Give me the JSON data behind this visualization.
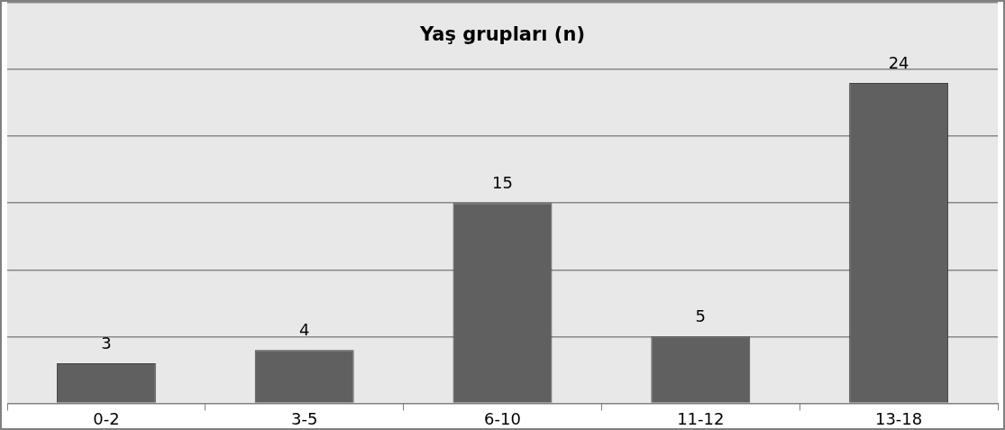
{
  "chart_data": {
    "type": "bar",
    "title": "Yaş grupları (n)",
    "categories": [
      "0-2",
      "3-5",
      "6-10",
      "11-12",
      "13-18"
    ],
    "values": [
      3,
      4,
      15,
      5,
      24
    ],
    "color": "#606060",
    "ylim": [
      0,
      30
    ],
    "tick_labels": "x",
    "grid": "y",
    "data_labels": true,
    "legend": false
  }
}
